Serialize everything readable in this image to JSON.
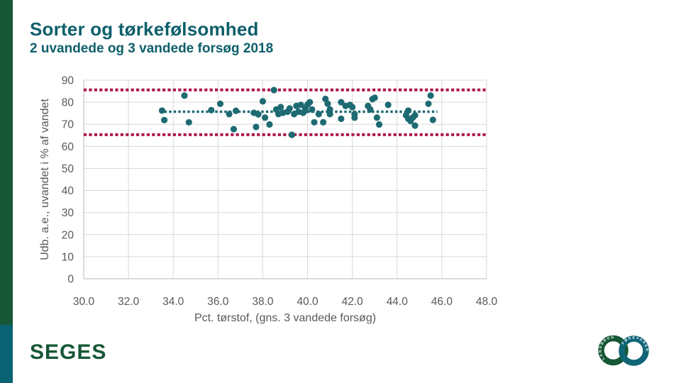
{
  "slide": {
    "title": "Sorter og tørkefølsomhed",
    "subtitle": "2 uvandede og 3 vandede forsøg 2018",
    "footer_brand": "SEGES",
    "logo": {
      "left_ring_text": "LANDBRUG",
      "right_ring_text": "FØDEVARER"
    }
  },
  "colors": {
    "accent_green": "#165736",
    "accent_teal_bar": "#0a6373",
    "title_teal": "#0d5f6a",
    "point_teal": "#1e6a72",
    "limit_red": "#b0164c",
    "grid_gray": "#d9d9d9",
    "axis_line_gray": "#b7b7b7",
    "axis_text_gray": "#595959"
  },
  "chart_data": {
    "type": "scatter",
    "xlabel": "Pct. tørstof, (gns. 3 vandede forsøg)",
    "ylabel": "Udb. a.e., uvandet i % af vandet",
    "xlim": [
      30,
      48
    ],
    "ylim": [
      0,
      90
    ],
    "xtick_values": [
      30,
      32,
      34,
      36,
      38,
      40,
      42,
      44,
      46,
      48
    ],
    "xtick_labels": [
      "30.0",
      "32.0",
      "34.0",
      "36.0",
      "38.0",
      "40.0",
      "42.0",
      "44.0",
      "46.0",
      "48.0"
    ],
    "ytick_values": [
      0,
      10,
      20,
      30,
      40,
      50,
      60,
      70,
      80,
      90
    ],
    "ytick_labels": [
      "0",
      "10",
      "20",
      "30",
      "40",
      "50",
      "60",
      "70",
      "80",
      "90"
    ],
    "grid": true,
    "legend": false,
    "reference_lines": [
      {
        "name": "upper-limit",
        "y": 85.6,
        "color": "#b0164c",
        "thickness": 4,
        "dash": [
          4.2,
          3.2
        ]
      },
      {
        "name": "mean-line",
        "y": 75.7,
        "color": "#1e6a72",
        "thickness": 3.4,
        "dash": [
          3.4,
          3.1
        ],
        "x_start": 33.4,
        "x_end": 45.8
      },
      {
        "name": "lower-limit",
        "y": 65.3,
        "color": "#b0164c",
        "thickness": 4,
        "dash": [
          4.2,
          3.2
        ]
      }
    ],
    "series": [
      {
        "name": "sorter",
        "color": "#1e6a72",
        "marker_radius": 4.6,
        "points": [
          [
            33.5,
            76.2
          ],
          [
            33.6,
            71.9
          ],
          [
            34.5,
            83.0
          ],
          [
            34.7,
            70.9
          ],
          [
            35.7,
            76.4
          ],
          [
            36.1,
            79.3
          ],
          [
            36.5,
            74.6
          ],
          [
            36.7,
            67.8
          ],
          [
            36.8,
            76.1
          ],
          [
            37.6,
            75.2
          ],
          [
            37.7,
            68.8
          ],
          [
            37.8,
            74.5
          ],
          [
            38.0,
            80.4
          ],
          [
            38.1,
            73.0
          ],
          [
            38.3,
            69.9
          ],
          [
            38.5,
            85.5
          ],
          [
            38.6,
            76.7
          ],
          [
            38.7,
            74.6
          ],
          [
            38.8,
            77.8
          ],
          [
            38.9,
            75.2
          ],
          [
            39.1,
            75.7
          ],
          [
            39.2,
            77.2
          ],
          [
            39.3,
            65.2
          ],
          [
            39.4,
            74.6
          ],
          [
            39.5,
            78.3
          ],
          [
            39.6,
            75.7
          ],
          [
            39.7,
            78.8
          ],
          [
            39.8,
            75.2
          ],
          [
            39.9,
            77.2
          ],
          [
            39.9,
            76.2
          ],
          [
            40.0,
            78.9
          ],
          [
            40.1,
            80.0
          ],
          [
            40.2,
            76.7
          ],
          [
            40.3,
            70.9
          ],
          [
            40.5,
            74.6
          ],
          [
            40.7,
            70.9
          ],
          [
            40.8,
            81.5
          ],
          [
            40.9,
            79.3
          ],
          [
            41.0,
            76.7
          ],
          [
            41.0,
            74.6
          ],
          [
            41.5,
            80.0
          ],
          [
            41.5,
            72.5
          ],
          [
            41.7,
            78.3
          ],
          [
            41.9,
            78.8
          ],
          [
            42.0,
            77.8
          ],
          [
            42.1,
            74.6
          ],
          [
            42.1,
            73.0
          ],
          [
            42.7,
            78.3
          ],
          [
            42.8,
            76.7
          ],
          [
            42.9,
            81.4
          ],
          [
            43.0,
            82.0
          ],
          [
            43.1,
            73.0
          ],
          [
            43.2,
            69.9
          ],
          [
            43.6,
            78.8
          ],
          [
            44.4,
            74.1
          ],
          [
            44.5,
            76.2
          ],
          [
            44.5,
            72.5
          ],
          [
            44.6,
            71.5
          ],
          [
            44.7,
            73.0
          ],
          [
            44.8,
            74.1
          ],
          [
            44.8,
            69.4
          ],
          [
            45.4,
            79.3
          ],
          [
            45.5,
            83.0
          ],
          [
            45.6,
            72.0
          ]
        ]
      }
    ]
  }
}
